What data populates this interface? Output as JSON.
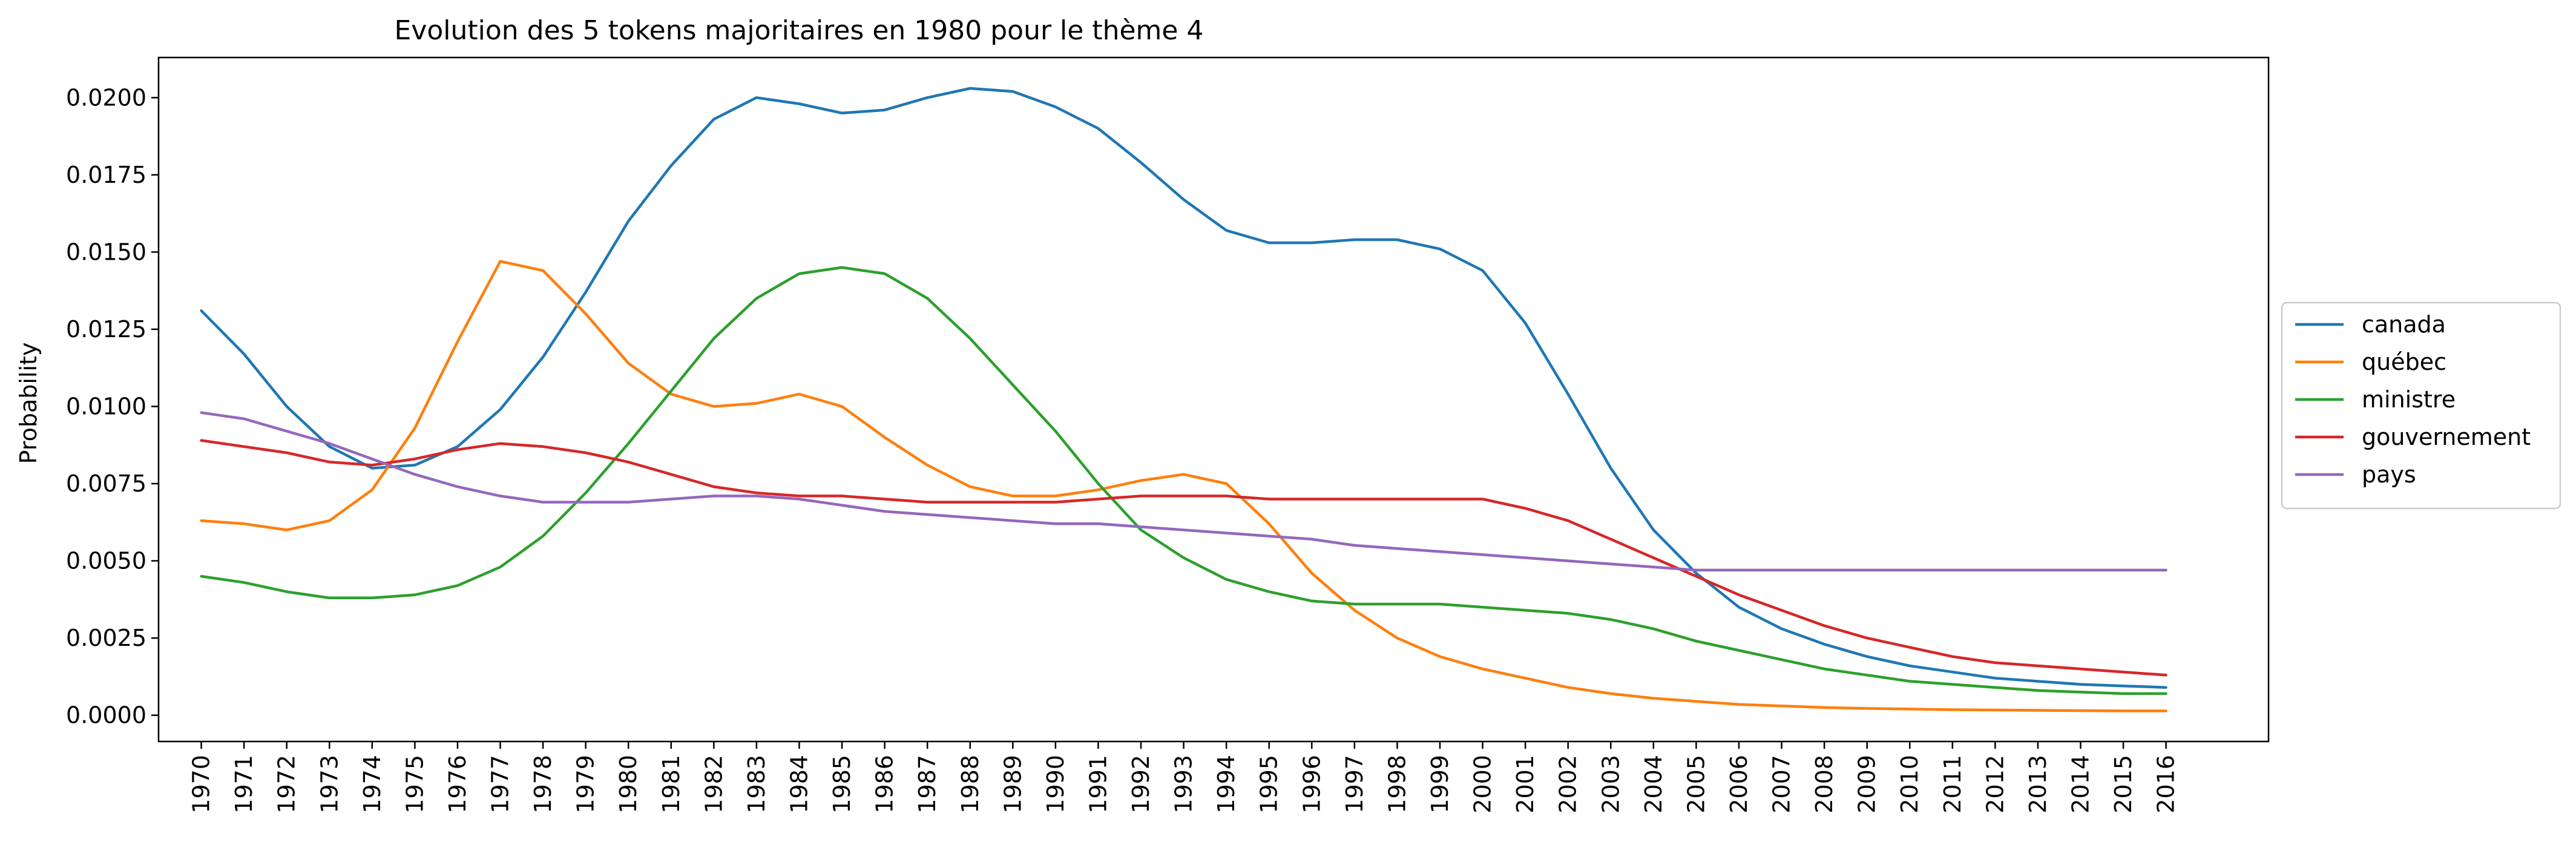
{
  "chart_data": {
    "type": "line",
    "title": "Evolution des 5 tokens majoritaires en 1980 pour le thème 4",
    "xlabel": "",
    "ylabel": "Probability",
    "x": [
      1970,
      1971,
      1972,
      1973,
      1974,
      1975,
      1976,
      1977,
      1978,
      1979,
      1980,
      1981,
      1982,
      1983,
      1984,
      1985,
      1986,
      1987,
      1988,
      1989,
      1990,
      1991,
      1992,
      1993,
      1994,
      1995,
      1996,
      1997,
      1998,
      1999,
      2000,
      2001,
      2002,
      2003,
      2004,
      2005,
      2006,
      2007,
      2008,
      2009,
      2010,
      2011,
      2012,
      2013,
      2014,
      2015,
      2016
    ],
    "xtick_labels": [
      "1970",
      "1971",
      "1972",
      "1973",
      "1974",
      "1975",
      "1976",
      "1977",
      "1978",
      "1979",
      "1980",
      "1981",
      "1982",
      "1983",
      "1984",
      "1985",
      "1986",
      "1987",
      "1988",
      "1989",
      "1990",
      "1991",
      "1992",
      "1993",
      "1994",
      "1995",
      "1996",
      "1997",
      "1998",
      "1999",
      "2000",
      "2001",
      "2002",
      "2003",
      "2004",
      "2005",
      "2006",
      "2007",
      "2008",
      "2009",
      "2010",
      "2011",
      "2012",
      "2013",
      "2014",
      "2015",
      "2016"
    ],
    "xlim": [
      1969.0,
      2018.4
    ],
    "ylim": [
      -0.00085,
      0.0213
    ],
    "yticks": [
      0.0,
      0.0025,
      0.005,
      0.0075,
      0.01,
      0.0125,
      0.015,
      0.0175,
      0.02
    ],
    "ytick_labels": [
      "0.0000",
      "0.0025",
      "0.0050",
      "0.0075",
      "0.0100",
      "0.0125",
      "0.0150",
      "0.0175",
      "0.0200"
    ],
    "grid": false,
    "legend_position": "outside-right",
    "series": [
      {
        "name": "canada",
        "color": "#1f77b4",
        "values": [
          0.0131,
          0.0117,
          0.01,
          0.0087,
          0.008,
          0.0081,
          0.0087,
          0.0099,
          0.0116,
          0.0137,
          0.016,
          0.0178,
          0.0193,
          0.02,
          0.0198,
          0.0195,
          0.0196,
          0.02,
          0.0203,
          0.0202,
          0.0197,
          0.019,
          0.0179,
          0.0167,
          0.0157,
          0.0153,
          0.0153,
          0.0154,
          0.0154,
          0.0151,
          0.0144,
          0.0127,
          0.0104,
          0.008,
          0.006,
          0.0046,
          0.0035,
          0.0028,
          0.0023,
          0.0019,
          0.0016,
          0.0014,
          0.0012,
          0.0011,
          0.001,
          0.00095,
          0.0009
        ]
      },
      {
        "name": "québec",
        "color": "#ff7f0e",
        "values": [
          0.0063,
          0.0062,
          0.006,
          0.0063,
          0.0073,
          0.0093,
          0.0121,
          0.0147,
          0.0144,
          0.013,
          0.0114,
          0.0104,
          0.01,
          0.0101,
          0.0104,
          0.01,
          0.009,
          0.0081,
          0.0074,
          0.0071,
          0.0071,
          0.0073,
          0.0076,
          0.0078,
          0.0075,
          0.0062,
          0.0046,
          0.0034,
          0.0025,
          0.0019,
          0.0015,
          0.0012,
          0.0009,
          0.0007,
          0.00055,
          0.00045,
          0.00035,
          0.0003,
          0.00025,
          0.00022,
          0.0002,
          0.00018,
          0.00017,
          0.00016,
          0.00015,
          0.00014,
          0.00014
        ]
      },
      {
        "name": "ministre",
        "color": "#2ca02c",
        "values": [
          0.0045,
          0.0043,
          0.004,
          0.0038,
          0.0038,
          0.0039,
          0.0042,
          0.0048,
          0.0058,
          0.0072,
          0.0088,
          0.0105,
          0.0122,
          0.0135,
          0.0143,
          0.0145,
          0.0143,
          0.0135,
          0.0122,
          0.0107,
          0.0092,
          0.0075,
          0.006,
          0.0051,
          0.0044,
          0.004,
          0.0037,
          0.0036,
          0.0036,
          0.0036,
          0.0035,
          0.0034,
          0.0033,
          0.0031,
          0.0028,
          0.0024,
          0.0021,
          0.0018,
          0.0015,
          0.0013,
          0.0011,
          0.001,
          0.0009,
          0.0008,
          0.00075,
          0.0007,
          0.0007
        ]
      },
      {
        "name": "gouvernement",
        "color": "#d62728",
        "values": [
          0.0089,
          0.0087,
          0.0085,
          0.0082,
          0.0081,
          0.0083,
          0.0086,
          0.0088,
          0.0087,
          0.0085,
          0.0082,
          0.0078,
          0.0074,
          0.0072,
          0.0071,
          0.0071,
          0.007,
          0.0069,
          0.0069,
          0.0069,
          0.0069,
          0.007,
          0.0071,
          0.0071,
          0.0071,
          0.007,
          0.007,
          0.007,
          0.007,
          0.007,
          0.007,
          0.0067,
          0.0063,
          0.0057,
          0.0051,
          0.0045,
          0.0039,
          0.0034,
          0.0029,
          0.0025,
          0.0022,
          0.0019,
          0.0017,
          0.0016,
          0.0015,
          0.0014,
          0.0013
        ]
      },
      {
        "name": "pays",
        "color": "#9467bd",
        "values": [
          0.0098,
          0.0096,
          0.0092,
          0.0088,
          0.0083,
          0.0078,
          0.0074,
          0.0071,
          0.0069,
          0.0069,
          0.0069,
          0.007,
          0.0071,
          0.0071,
          0.007,
          0.0068,
          0.0066,
          0.0065,
          0.0064,
          0.0063,
          0.0062,
          0.0062,
          0.0061,
          0.006,
          0.0059,
          0.0058,
          0.0057,
          0.0055,
          0.0054,
          0.0053,
          0.0052,
          0.0051,
          0.005,
          0.0049,
          0.0048,
          0.0047,
          0.0047,
          0.0047,
          0.0047,
          0.0047,
          0.0047,
          0.0047,
          0.0047,
          0.0047,
          0.0047,
          0.0047,
          0.0047
        ]
      }
    ]
  }
}
